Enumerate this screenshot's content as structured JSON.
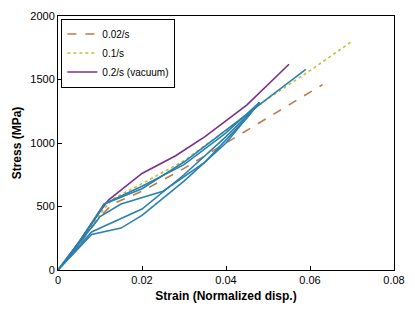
{
  "chart_data": {
    "type": "line",
    "x_label": "Strain (Normalized disp.)",
    "y_label": "Stress (MPa)",
    "xlim": [
      0,
      0.08
    ],
    "xticks": [
      0,
      0.02,
      0.04,
      0.06,
      0.08
    ],
    "ylim": [
      0,
      2000
    ],
    "yticks": [
      0,
      500,
      1000,
      1500,
      2000
    ],
    "grid": false,
    "legend": "upper left",
    "series": [
      {
        "name": "0.02/s",
        "color": "#c07a48",
        "line_style": "dashed",
        "x": [
          0,
          0.005,
          0.01,
          0.013,
          0.02,
          0.03,
          0.04,
          0.05,
          0.063
        ],
        "values": [
          0,
          200,
          420,
          520,
          620,
          800,
          1000,
          1200,
          1460
        ]
      },
      {
        "name": "0.1/s",
        "color": "#c2c232",
        "line_style": "dotted",
        "x": [
          0,
          0.005,
          0.01,
          0.013,
          0.02,
          0.03,
          0.04,
          0.05,
          0.06,
          0.07
        ],
        "values": [
          0,
          210,
          440,
          560,
          680,
          860,
          1100,
          1350,
          1570,
          1800
        ]
      },
      {
        "name": "0.2/s (vacuum)",
        "color": "#7e2f8e",
        "line_style": "solid",
        "x": [
          0,
          0.005,
          0.01,
          0.012,
          0.02,
          0.028,
          0.035,
          0.045,
          0.055
        ],
        "values": [
          0,
          220,
          460,
          550,
          760,
          900,
          1050,
          1300,
          1620
        ]
      },
      {
        "color": "#2a80b0",
        "line_style": "solid",
        "x": [
          0,
          0.005,
          0.011,
          0.02,
          0.03,
          0.04,
          0.048
        ],
        "values": [
          0,
          220,
          520,
          660,
          830,
          1080,
          1320
        ]
      },
      {
        "color": "#2a80b0",
        "line_style": "solid",
        "x": [
          0,
          0.008,
          0.012,
          0.02,
          0.03,
          0.04,
          0.048
        ],
        "values": [
          0,
          300,
          360,
          480,
          750,
          1050,
          1310
        ]
      },
      {
        "color": "#2a80b0",
        "line_style": "solid",
        "x": [
          0,
          0.008,
          0.015,
          0.02,
          0.03,
          0.04,
          0.048
        ],
        "values": [
          0,
          280,
          330,
          430,
          700,
          1000,
          1320
        ]
      },
      {
        "color": "#2a80b0",
        "line_style": "solid",
        "x": [
          0,
          0.005,
          0.011,
          0.02,
          0.03,
          0.04,
          0.05,
          0.059
        ],
        "values": [
          0,
          210,
          520,
          640,
          850,
          1100,
          1350,
          1580
        ]
      },
      {
        "color": "#2a80b0",
        "line_style": "solid",
        "x": [
          0,
          0.01,
          0.015,
          0.025,
          0.035,
          0.045,
          0.048
        ],
        "values": [
          0,
          420,
          520,
          620,
          850,
          1200,
          1320
        ]
      }
    ]
  }
}
